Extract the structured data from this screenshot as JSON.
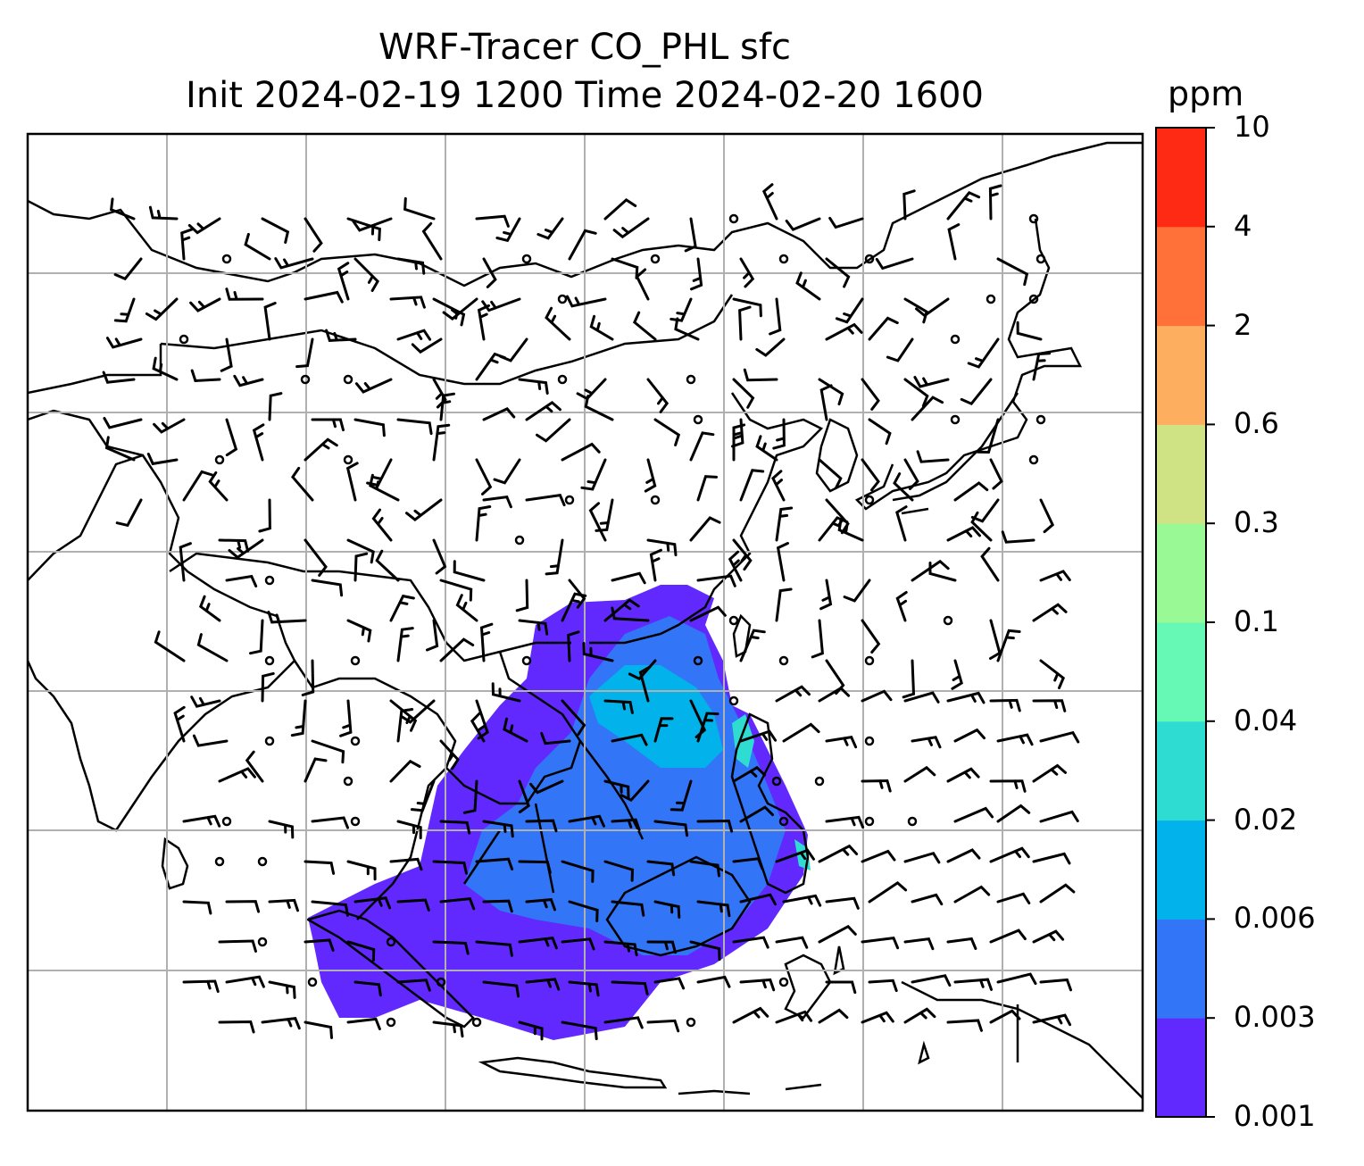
{
  "title": {
    "line1": "WRF-Tracer CO_PHL sfc",
    "line2": "Init 2024-02-19 1200 Time 2024-02-20 1600"
  },
  "colorbar": {
    "unit": "ppm",
    "levels": [
      "0.001",
      "0.003",
      "0.006",
      "0.02",
      "0.04",
      "0.1",
      "0.3",
      "0.6",
      "2",
      "4",
      "10"
    ],
    "colors": [
      "#6129fe",
      "#3275f6",
      "#02b2ea",
      "#2edcd2",
      "#66f9b6",
      "#99fa95",
      "#cfe384",
      "#fdaf5f",
      "#ff7139",
      "#ff2a14"
    ]
  },
  "map": {
    "region": "East and Southeast Asia",
    "gridlines": true,
    "coastline_color": "#000000",
    "tracer_colors": {
      "low": "#6129fe",
      "mid": "#3275f6",
      "high": "#02b2ea",
      "peak": "#2edcd2"
    },
    "wind_barbs": true,
    "calm_marker": "circle"
  }
}
